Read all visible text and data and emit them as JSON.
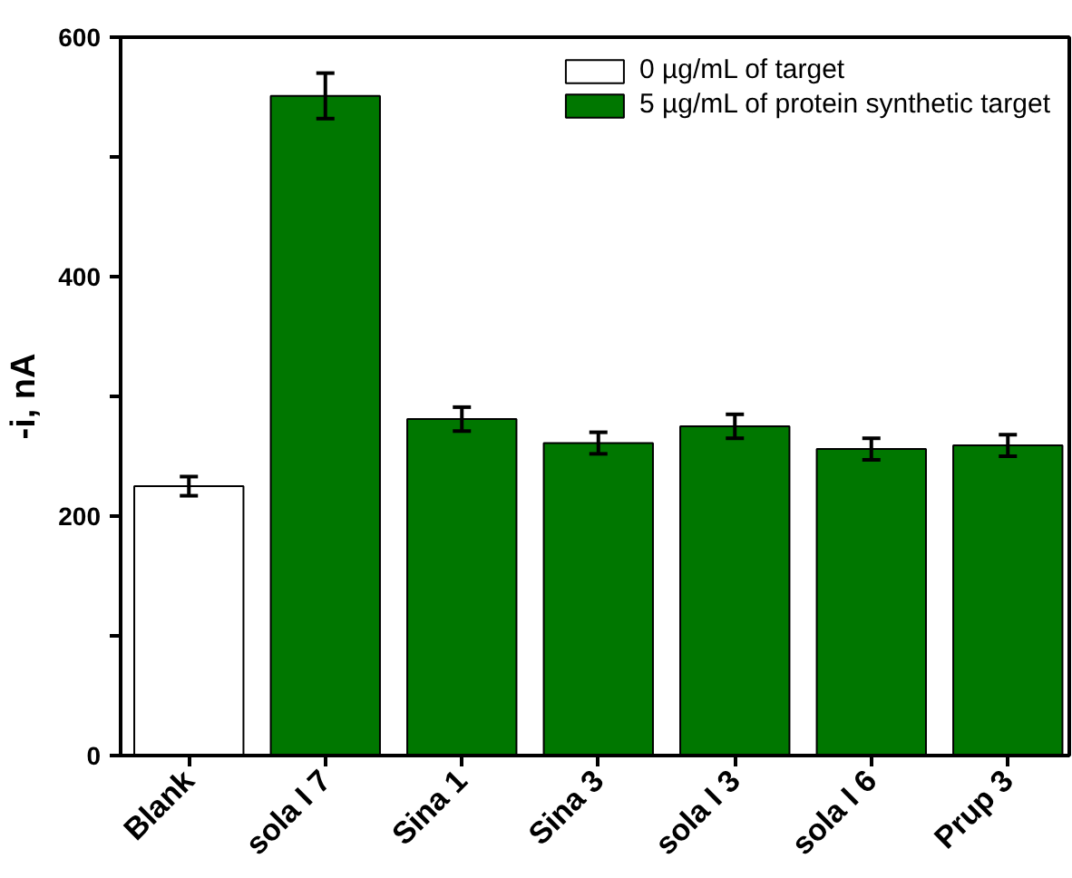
{
  "chart_data": {
    "type": "bar",
    "ylabel": "-i, nA",
    "categories": [
      "Blank",
      "sola I 7",
      "Sina 1",
      "Sina 3",
      "sola I 3",
      "sola I 6",
      "Prup 3"
    ],
    "series": [
      {
        "name": "0 µg/mL of target",
        "color": "#ffffff",
        "values": [
          225,
          null,
          null,
          null,
          null,
          null,
          null
        ],
        "errors": [
          8,
          null,
          null,
          null,
          null,
          null,
          null
        ]
      },
      {
        "name": "5 µg/mL of protein synthetic target",
        "color": "#007700",
        "values": [
          null,
          551,
          281,
          261,
          275,
          256,
          259
        ],
        "errors": [
          null,
          19,
          10,
          9,
          10,
          9,
          9
        ]
      }
    ],
    "ylim": [
      0,
      600
    ],
    "yticks": [
      0,
      {
        "value": 100,
        "label": null
      },
      200,
      {
        "value": 300,
        "label": null
      },
      400,
      {
        "value": 500,
        "label": null
      },
      600
    ],
    "grid": false,
    "legend": "top right"
  }
}
